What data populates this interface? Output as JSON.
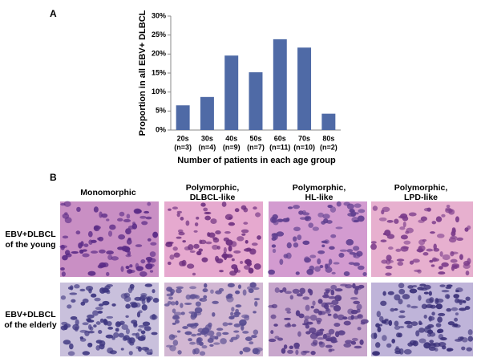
{
  "chart_data": {
    "type": "bar",
    "panel_label": "A",
    "y_label": "Proportion in all EBV+ DLBCL",
    "x_label": "Number of patients in each age group",
    "categories": [
      "20s",
      "30s",
      "40s",
      "50s",
      "60s",
      "70s",
      "80s"
    ],
    "category_sublabels": [
      "(n=3)",
      "(n=4)",
      "(n=9)",
      "(n=7)",
      "(n=11)",
      "(n=10)",
      "(n=2)"
    ],
    "values": [
      6.5,
      8.7,
      19.6,
      15.2,
      23.9,
      21.7,
      4.3
    ],
    "color": "#4f6aa6",
    "ylim": [
      0,
      30
    ],
    "yticks": [
      {
        "value": 0,
        "label": "0%"
      },
      {
        "value": 5,
        "label": "5%"
      },
      {
        "value": 10,
        "label": "10%"
      },
      {
        "value": 15,
        "label": "15%"
      },
      {
        "value": 20,
        "label": "20%"
      },
      {
        "value": 25,
        "label": "25%"
      },
      {
        "value": 30,
        "label": "30%"
      }
    ],
    "grid": false
  },
  "panel_b": {
    "panel_label": "B",
    "columns": [
      [
        "Monomorphic"
      ],
      [
        "Polymorphic,",
        "DLBCL-like"
      ],
      [
        "Polymorphic,",
        "HL-like"
      ],
      [
        "Polymorphic,",
        "LPD-like"
      ]
    ],
    "rows": [
      [
        "EBV+DLBCL",
        "of the young"
      ],
      [
        "EBV+DLBCL",
        "of the elderly"
      ]
    ]
  }
}
